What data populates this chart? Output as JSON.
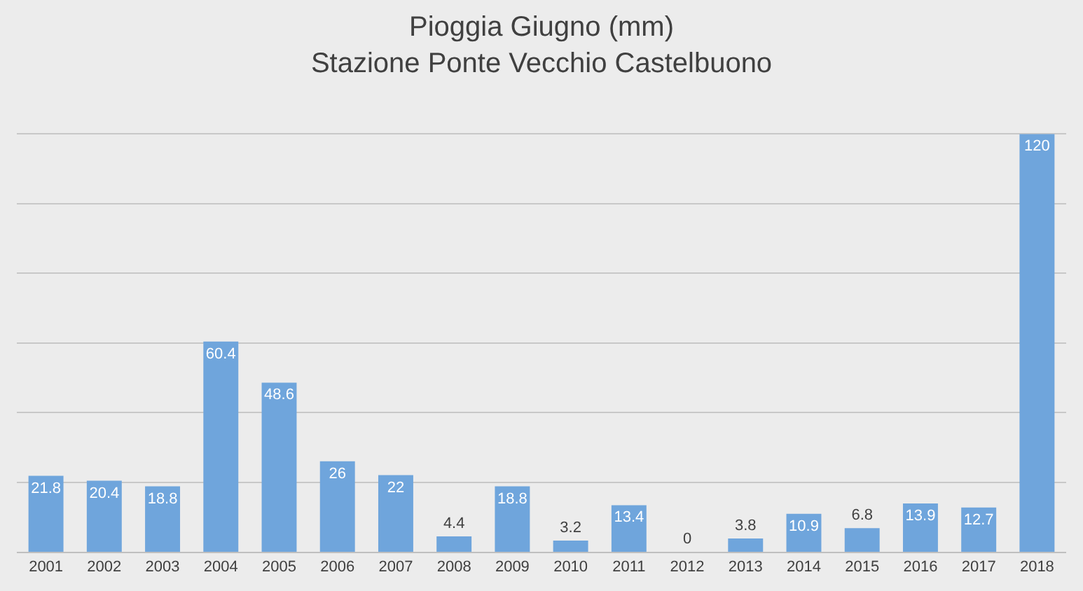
{
  "chart_data": {
    "type": "bar",
    "title": "Pioggia Giugno (mm)",
    "subtitle": "Stazione Ponte Vecchio Castelbuono",
    "categories": [
      "2001",
      "2002",
      "2003",
      "2004",
      "2005",
      "2006",
      "2007",
      "2008",
      "2009",
      "2010",
      "2011",
      "2012",
      "2013",
      "2014",
      "2015",
      "2016",
      "2017",
      "2018"
    ],
    "values": [
      21.8,
      20.4,
      18.8,
      60.4,
      48.6,
      26,
      22,
      4.4,
      18.8,
      3.2,
      13.4,
      0,
      3.8,
      10.9,
      6.8,
      13.9,
      12.7,
      120
    ],
    "color": "#6fa5dc",
    "data_labels": true,
    "grid": "y",
    "tick_labels": "x"
  }
}
